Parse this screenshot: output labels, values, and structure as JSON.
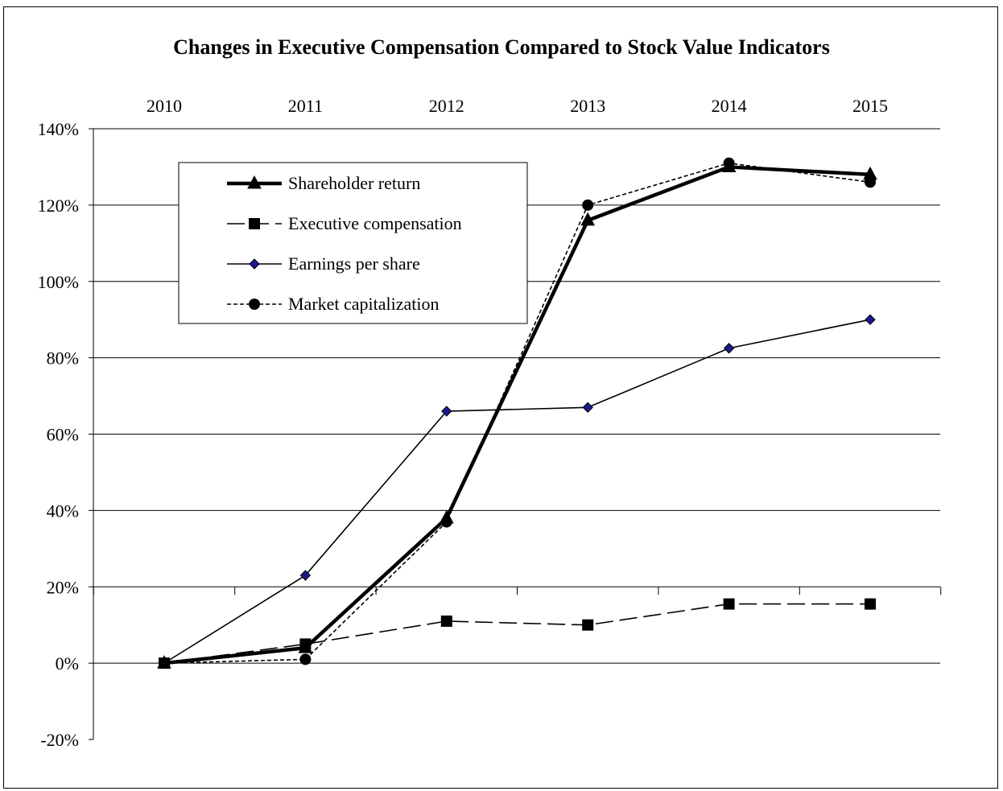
{
  "chart_data": {
    "type": "line",
    "title": "Changes in Executive Compensation Compared to Stock Value Indicators",
    "categories": [
      "2010",
      "2011",
      "2012",
      "2013",
      "2014",
      "2015"
    ],
    "y_tick_labels": [
      "140%",
      "120%",
      "100%",
      "80%",
      "60%",
      "40%",
      "20%",
      "0%",
      "-20%"
    ],
    "ylim": [
      -20,
      140
    ],
    "y_unit": "%",
    "grid": true,
    "legend_position": "top-left",
    "series": [
      {
        "name": "Shareholder return",
        "values": [
          0,
          4,
          38,
          116,
          130,
          128
        ],
        "marker": "triangle",
        "line_style": "solid-thick",
        "color": "#000000"
      },
      {
        "name": "Executive compensation",
        "values": [
          0,
          5,
          11,
          10,
          15.5,
          15.5
        ],
        "marker": "square",
        "line_style": "long-dash",
        "color": "#000000"
      },
      {
        "name": "Earnings per share",
        "values": [
          0,
          23,
          66,
          67,
          82.5,
          90
        ],
        "marker": "diamond",
        "line_style": "solid-thin",
        "color": "#000000",
        "marker_color": "#1a1a8c"
      },
      {
        "name": "Market capitalization",
        "values": [
          0,
          1,
          37,
          120,
          131,
          126
        ],
        "marker": "circle",
        "line_style": "short-dash",
        "color": "#000000"
      }
    ]
  }
}
